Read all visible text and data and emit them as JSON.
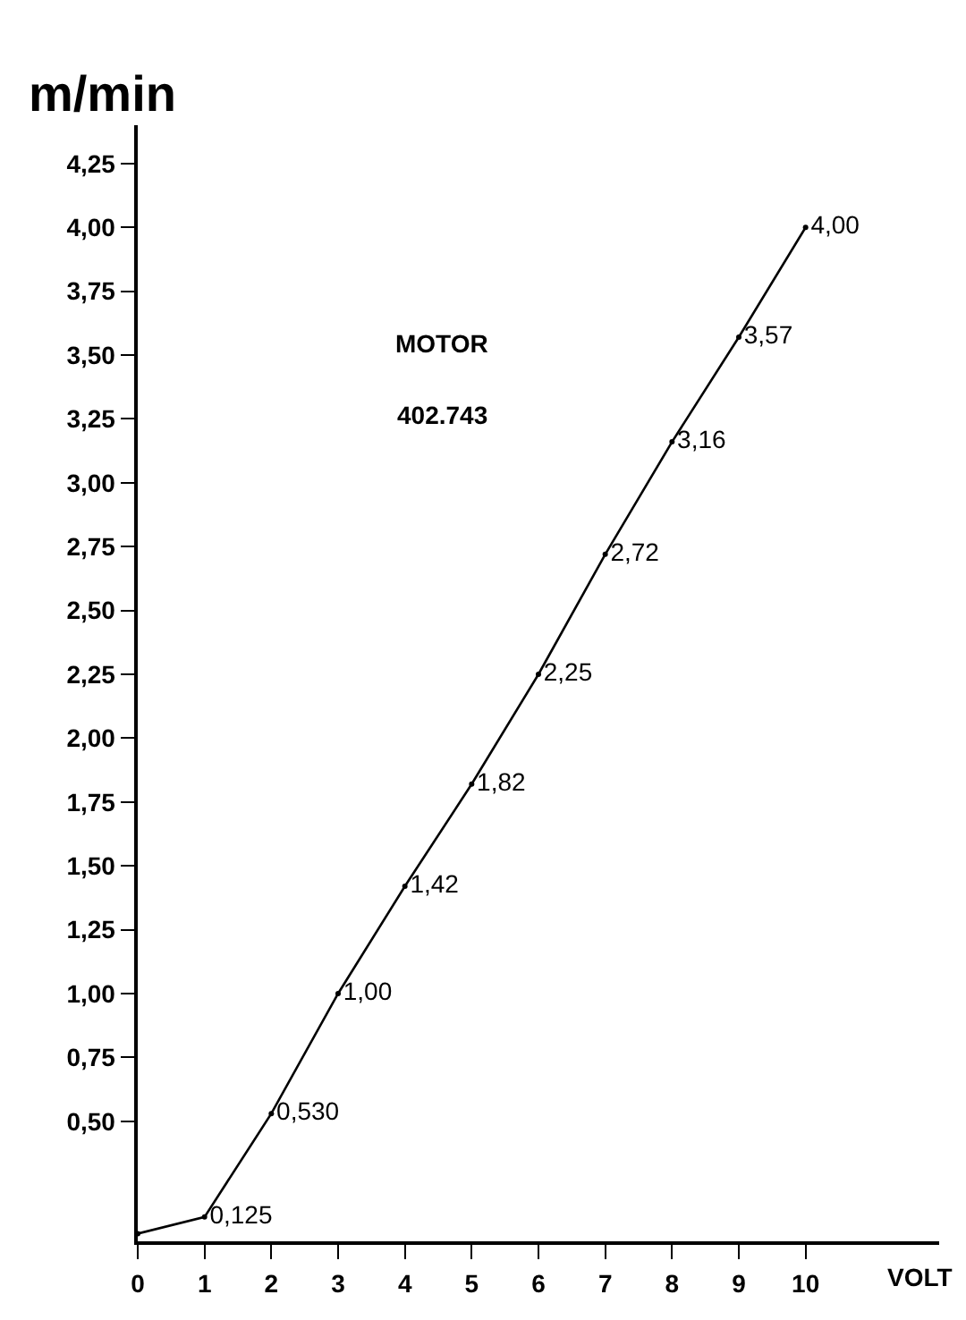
{
  "chart_data": {
    "type": "line",
    "ylabel": "m/min",
    "xlabel": "VOLT",
    "annotations": [
      "MOTOR",
      "402.743"
    ],
    "x": [
      0,
      1,
      2,
      3,
      4,
      5,
      6,
      7,
      8,
      9,
      10
    ],
    "series": [
      {
        "color": "#000000",
        "values": [
          0.06,
          0.125,
          0.53,
          1.0,
          1.42,
          1.82,
          2.25,
          2.72,
          3.16,
          3.57,
          4.0
        ],
        "value_labels": [
          null,
          "0,125",
          "0,530",
          "1,00",
          "1,42",
          "1,82",
          "2,25",
          "2,72",
          "3,16",
          "3,57",
          "4,00"
        ]
      }
    ],
    "xlim": [
      0,
      12
    ],
    "ylim": [
      0.03,
      4.4
    ],
    "xticks": [
      0,
      1,
      2,
      3,
      4,
      5,
      6,
      7,
      8,
      9,
      10
    ],
    "yticks": [
      {
        "value": 0.5,
        "label": "0,50"
      },
      {
        "value": 0.75,
        "label": "0,75"
      },
      {
        "value": 1.0,
        "label": "1,00"
      },
      {
        "value": 1.25,
        "label": "1,25"
      },
      {
        "value": 1.5,
        "label": "1,50"
      },
      {
        "value": 1.75,
        "label": "1,75"
      },
      {
        "value": 2.0,
        "label": "2,00"
      },
      {
        "value": 2.25,
        "label": "2,25"
      },
      {
        "value": 2.5,
        "label": "2,50"
      },
      {
        "value": 2.75,
        "label": "2,75"
      },
      {
        "value": 3.0,
        "label": "3,00"
      },
      {
        "value": 3.25,
        "label": "3,25"
      },
      {
        "value": 3.5,
        "label": "3,50"
      },
      {
        "value": 3.75,
        "label": "3,75"
      },
      {
        "value": 4.0,
        "label": "4,00"
      },
      {
        "value": 4.25,
        "label": "4,25"
      }
    ],
    "legend": false,
    "marker": "circle",
    "line_style": "solid"
  }
}
